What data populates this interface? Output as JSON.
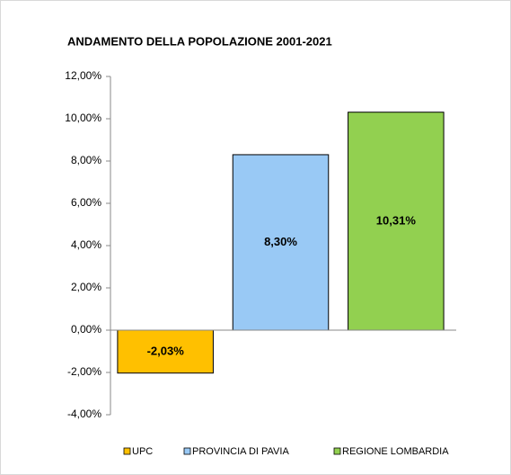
{
  "chart_data": {
    "type": "bar",
    "title": "ANDAMENTO DELLA POPOLAZIONE 2001-2021",
    "categories": [
      "UPC",
      "PROVINCIA DI PAVIA",
      "REGIONE LOMBARDIA"
    ],
    "values": [
      -2.03,
      8.3,
      10.31
    ],
    "value_labels": [
      "-2,03%",
      "8,30%",
      "10,31%"
    ],
    "colors": [
      "#ffc000",
      "#99c9f5",
      "#92d050"
    ],
    "ylim": [
      -4,
      12
    ],
    "yticks": [
      {
        "value": -4,
        "label": "-4,00%"
      },
      {
        "value": -2,
        "label": "-2,00%"
      },
      {
        "value": 0,
        "label": "0,00%"
      },
      {
        "value": 2,
        "label": "2,00%"
      },
      {
        "value": 4,
        "label": "4,00%"
      },
      {
        "value": 6,
        "label": "6,00%"
      },
      {
        "value": 8,
        "label": "8,00%"
      },
      {
        "value": 10,
        "label": "10,00%"
      },
      {
        "value": 12,
        "label": "12,00%"
      }
    ],
    "grid": false,
    "legend": "bottom"
  }
}
